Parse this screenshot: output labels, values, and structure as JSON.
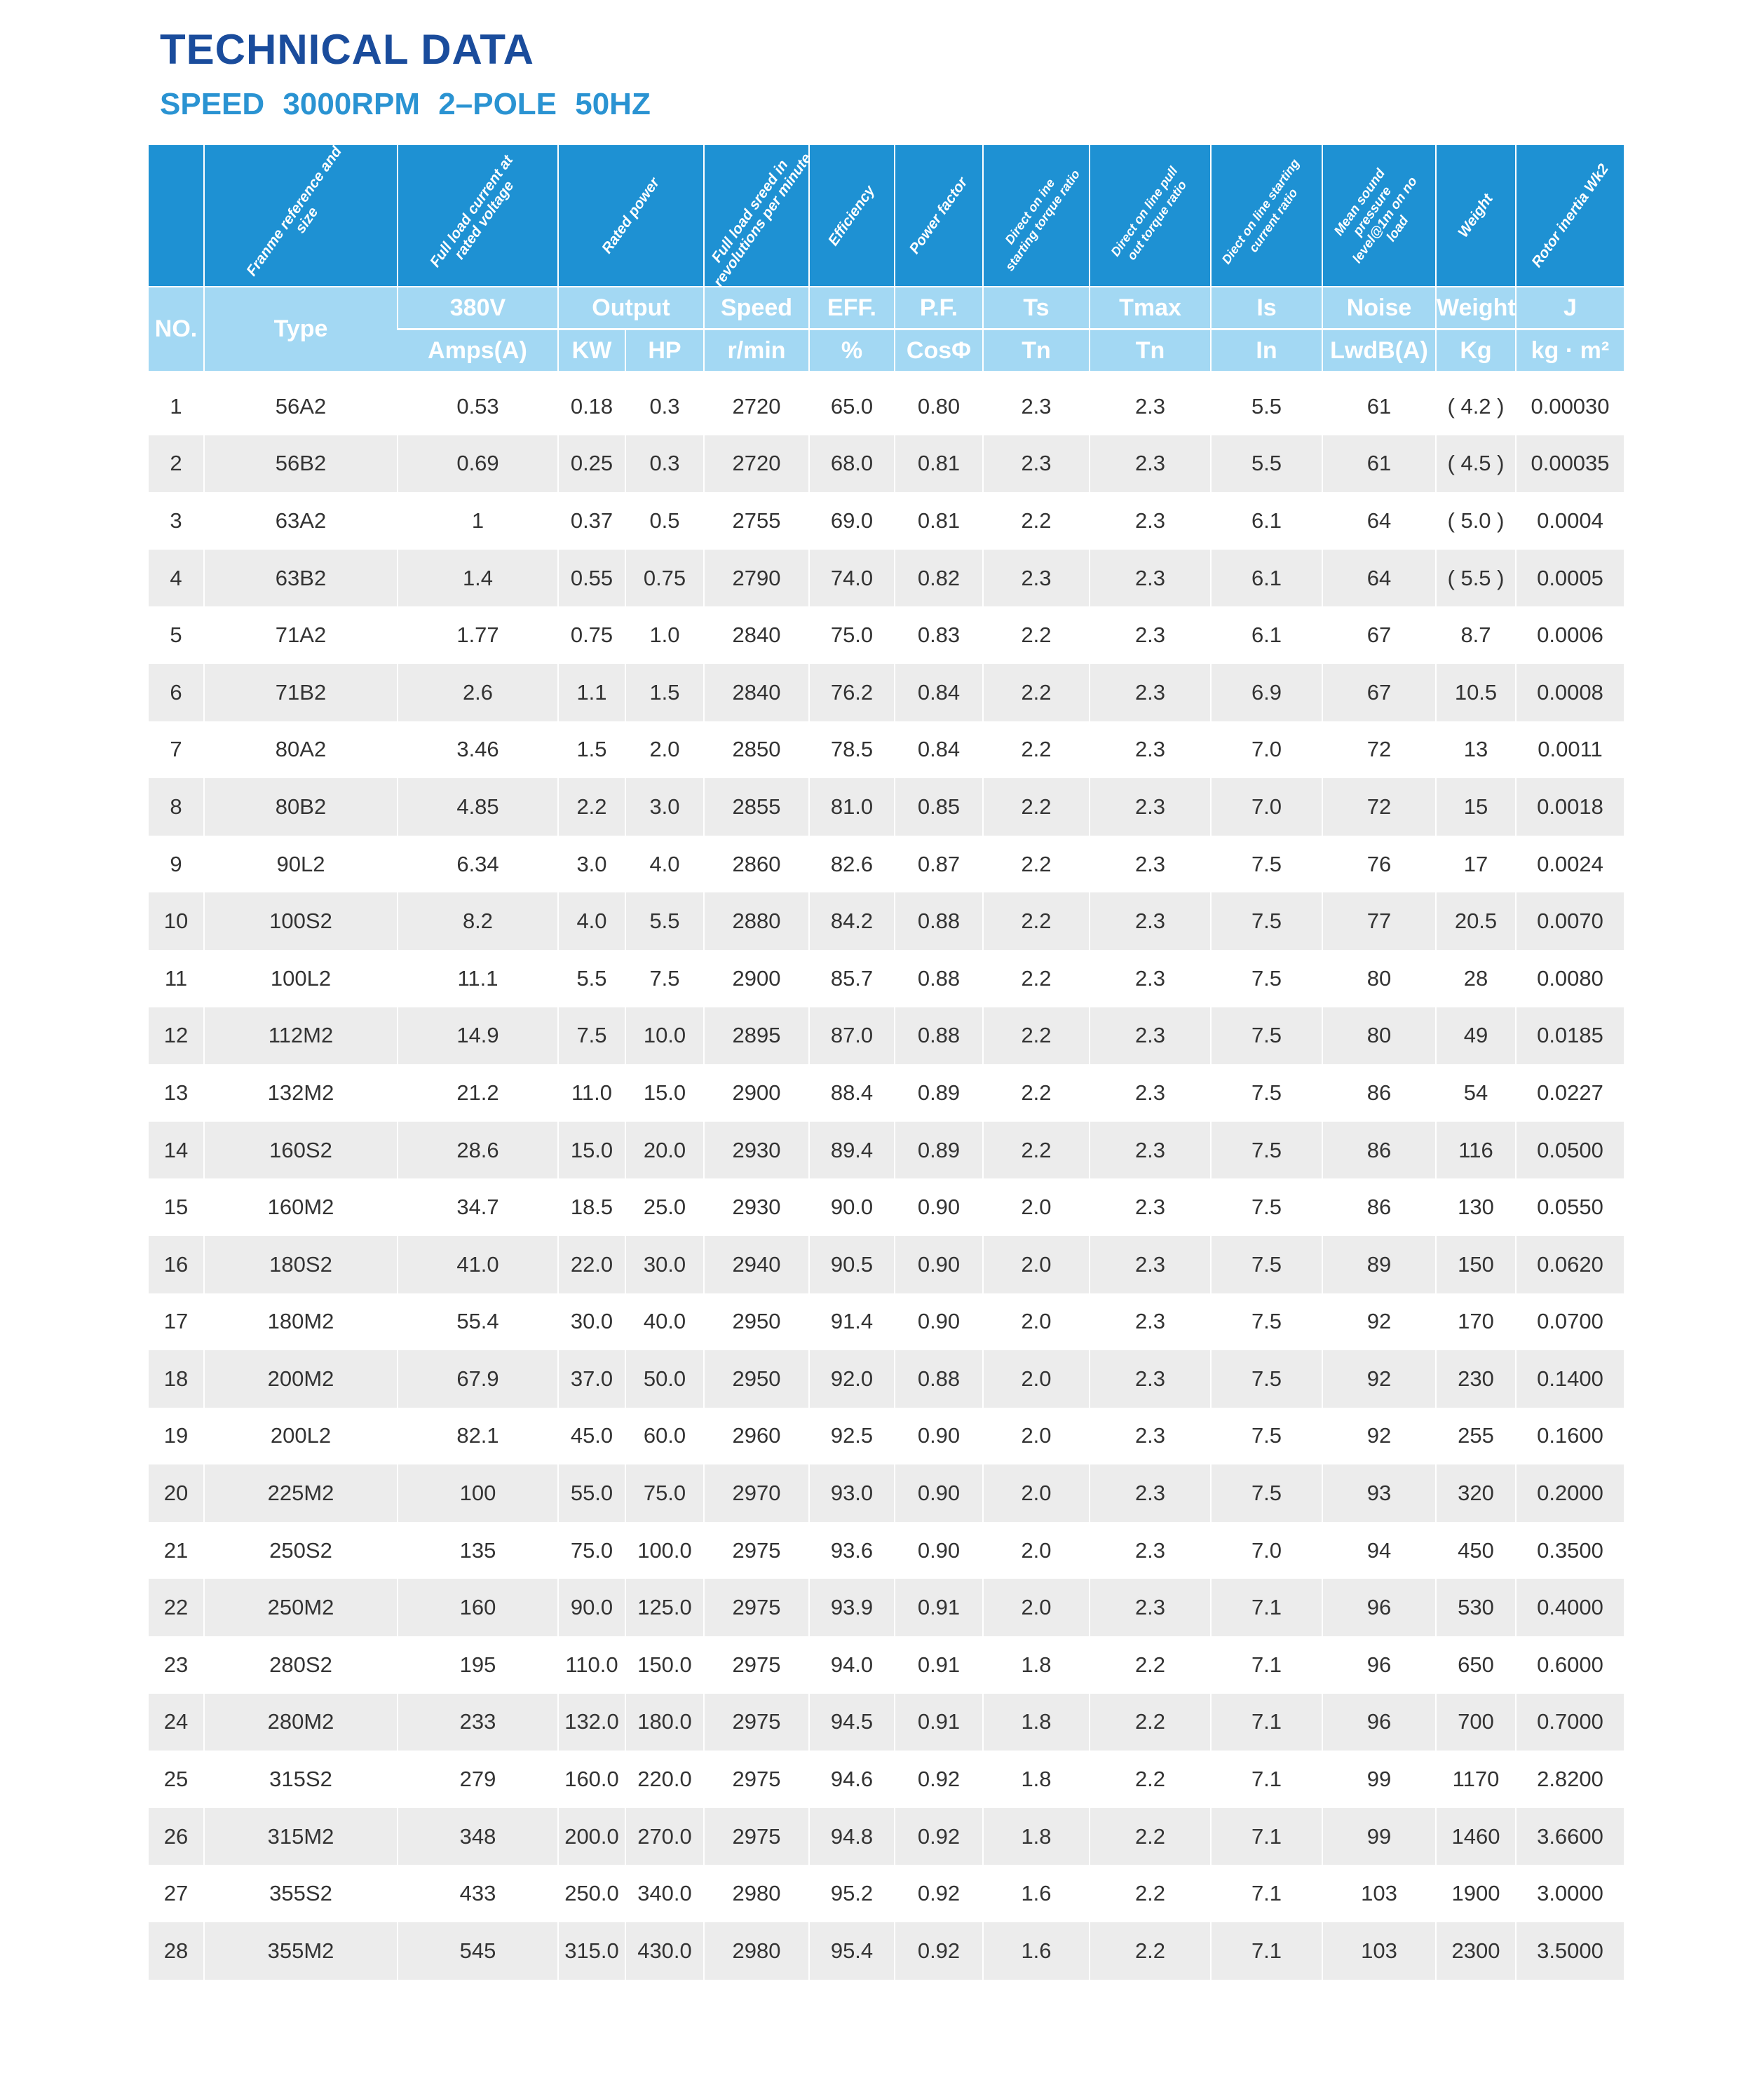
{
  "title": "TECHNICAL DATA",
  "subtitle": "SPEED   3000RPM   2–POLE  50HZ",
  "header": {
    "desc": [
      "",
      "Franme reference and size",
      "Full load current at rated voltage",
      "Rated power",
      "Full load sreed in revolutions per minute",
      "Efficiency",
      "Power factor",
      "Direct on ine starting torque ratio",
      "Direct on line pull out torque ratio",
      "Diect on line starting current ratio",
      "Mean sound pressure level@1m on no load",
      "Weight",
      "Rotor inertia Wk2"
    ],
    "no": "NO.",
    "type": "Type",
    "v380": "380V",
    "output": "Output",
    "speed": "Speed",
    "eff": "EFF.",
    "pf": "P.F.",
    "ts": "Ts",
    "tmax": "Tmax",
    "is": "Is",
    "noise": "Noise",
    "weight": "Weight",
    "j": "J",
    "amps": "Amps(A)",
    "kw": "KW",
    "hp": "HP",
    "rmin": "r/min",
    "pct": "%",
    "cos": "CosΦ",
    "tn1": "Tn",
    "tn2": "Tn",
    "in": "In",
    "lwdb": "LwdB(A)",
    "kg": "Kg",
    "kgm2": "kg · m²"
  },
  "rows": [
    [
      "1",
      "56A2",
      "0.53",
      "0.18",
      "0.3",
      "2720",
      "65.0",
      "0.80",
      "2.3",
      "2.3",
      "5.5",
      "61",
      "( 4.2 )",
      "0.00030"
    ],
    [
      "2",
      "56B2",
      "0.69",
      "0.25",
      "0.3",
      "2720",
      "68.0",
      "0.81",
      "2.3",
      "2.3",
      "5.5",
      "61",
      "( 4.5 )",
      "0.00035"
    ],
    [
      "3",
      "63A2",
      "1",
      "0.37",
      "0.5",
      "2755",
      "69.0",
      "0.81",
      "2.2",
      "2.3",
      "6.1",
      "64",
      "( 5.0 )",
      "0.0004"
    ],
    [
      "4",
      "63B2",
      "1.4",
      "0.55",
      "0.75",
      "2790",
      "74.0",
      "0.82",
      "2.3",
      "2.3",
      "6.1",
      "64",
      "( 5.5 )",
      "0.0005"
    ],
    [
      "5",
      "71A2",
      "1.77",
      "0.75",
      "1.0",
      "2840",
      "75.0",
      "0.83",
      "2.2",
      "2.3",
      "6.1",
      "67",
      "8.7",
      "0.0006"
    ],
    [
      "6",
      "71B2",
      "2.6",
      "1.1",
      "1.5",
      "2840",
      "76.2",
      "0.84",
      "2.2",
      "2.3",
      "6.9",
      "67",
      "10.5",
      "0.0008"
    ],
    [
      "7",
      "80A2",
      "3.46",
      "1.5",
      "2.0",
      "2850",
      "78.5",
      "0.84",
      "2.2",
      "2.3",
      "7.0",
      "72",
      "13",
      "0.0011"
    ],
    [
      "8",
      "80B2",
      "4.85",
      "2.2",
      "3.0",
      "2855",
      "81.0",
      "0.85",
      "2.2",
      "2.3",
      "7.0",
      "72",
      "15",
      "0.0018"
    ],
    [
      "9",
      "90L2",
      "6.34",
      "3.0",
      "4.0",
      "2860",
      "82.6",
      "0.87",
      "2.2",
      "2.3",
      "7.5",
      "76",
      "17",
      "0.0024"
    ],
    [
      "10",
      "100S2",
      "8.2",
      "4.0",
      "5.5",
      "2880",
      "84.2",
      "0.88",
      "2.2",
      "2.3",
      "7.5",
      "77",
      "20.5",
      "0.0070"
    ],
    [
      "11",
      "100L2",
      "11.1",
      "5.5",
      "7.5",
      "2900",
      "85.7",
      "0.88",
      "2.2",
      "2.3",
      "7.5",
      "80",
      "28",
      "0.0080"
    ],
    [
      "12",
      "112M2",
      "14.9",
      "7.5",
      "10.0",
      "2895",
      "87.0",
      "0.88",
      "2.2",
      "2.3",
      "7.5",
      "80",
      "49",
      "0.0185"
    ],
    [
      "13",
      "132M2",
      "21.2",
      "11.0",
      "15.0",
      "2900",
      "88.4",
      "0.89",
      "2.2",
      "2.3",
      "7.5",
      "86",
      "54",
      "0.0227"
    ],
    [
      "14",
      "160S2",
      "28.6",
      "15.0",
      "20.0",
      "2930",
      "89.4",
      "0.89",
      "2.2",
      "2.3",
      "7.5",
      "86",
      "116",
      "0.0500"
    ],
    [
      "15",
      "160M2",
      "34.7",
      "18.5",
      "25.0",
      "2930",
      "90.0",
      "0.90",
      "2.0",
      "2.3",
      "7.5",
      "86",
      "130",
      "0.0550"
    ],
    [
      "16",
      "180S2",
      "41.0",
      "22.0",
      "30.0",
      "2940",
      "90.5",
      "0.90",
      "2.0",
      "2.3",
      "7.5",
      "89",
      "150",
      "0.0620"
    ],
    [
      "17",
      "180M2",
      "55.4",
      "30.0",
      "40.0",
      "2950",
      "91.4",
      "0.90",
      "2.0",
      "2.3",
      "7.5",
      "92",
      "170",
      "0.0700"
    ],
    [
      "18",
      "200M2",
      "67.9",
      "37.0",
      "50.0",
      "2950",
      "92.0",
      "0.88",
      "2.0",
      "2.3",
      "7.5",
      "92",
      "230",
      "0.1400"
    ],
    [
      "19",
      "200L2",
      "82.1",
      "45.0",
      "60.0",
      "2960",
      "92.5",
      "0.90",
      "2.0",
      "2.3",
      "7.5",
      "92",
      "255",
      "0.1600"
    ],
    [
      "20",
      "225M2",
      "100",
      "55.0",
      "75.0",
      "2970",
      "93.0",
      "0.90",
      "2.0",
      "2.3",
      "7.5",
      "93",
      "320",
      "0.2000"
    ],
    [
      "21",
      "250S2",
      "135",
      "75.0",
      "100.0",
      "2975",
      "93.6",
      "0.90",
      "2.0",
      "2.3",
      "7.0",
      "94",
      "450",
      "0.3500"
    ],
    [
      "22",
      "250M2",
      "160",
      "90.0",
      "125.0",
      "2975",
      "93.9",
      "0.91",
      "2.0",
      "2.3",
      "7.1",
      "96",
      "530",
      "0.4000"
    ],
    [
      "23",
      "280S2",
      "195",
      "110.0",
      "150.0",
      "2975",
      "94.0",
      "0.91",
      "1.8",
      "2.2",
      "7.1",
      "96",
      "650",
      "0.6000"
    ],
    [
      "24",
      "280M2",
      "233",
      "132.0",
      "180.0",
      "2975",
      "94.5",
      "0.91",
      "1.8",
      "2.2",
      "7.1",
      "96",
      "700",
      "0.7000"
    ],
    [
      "25",
      "315S2",
      "279",
      "160.0",
      "220.0",
      "2975",
      "94.6",
      "0.92",
      "1.8",
      "2.2",
      "7.1",
      "99",
      "1170",
      "2.8200"
    ],
    [
      "26",
      "315M2",
      "348",
      "200.0",
      "270.0",
      "2975",
      "94.8",
      "0.92",
      "1.8",
      "2.2",
      "7.1",
      "99",
      "1460",
      "3.6600"
    ],
    [
      "27",
      "355S2",
      "433",
      "250.0",
      "340.0",
      "2980",
      "95.2",
      "0.92",
      "1.6",
      "2.2",
      "7.1",
      "103",
      "1900",
      "3.0000"
    ],
    [
      "28",
      "355M2",
      "545",
      "315.0",
      "430.0",
      "2980",
      "95.4",
      "0.92",
      "1.6",
      "2.2",
      "7.1",
      "103",
      "2300",
      "3.5000"
    ]
  ]
}
